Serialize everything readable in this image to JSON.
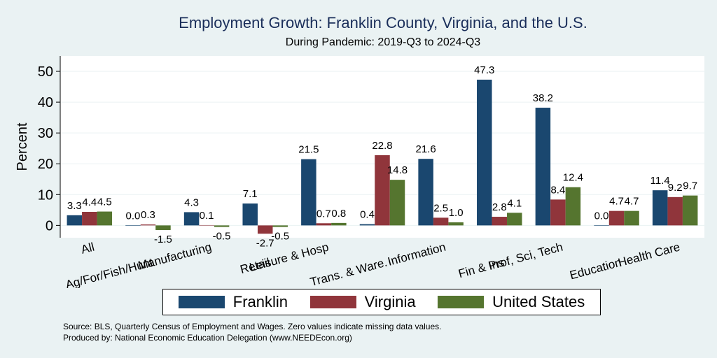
{
  "chart_data": {
    "type": "bar",
    "title": "Employment Growth: Franklin County, Virginia, and the U.S.",
    "subtitle": "During Pandemic: 2019-Q3 to 2024-Q3",
    "ylabel": "Percent",
    "ylim": [
      -4,
      55
    ],
    "yticks": [
      0,
      10,
      20,
      30,
      40,
      50
    ],
    "grid": true,
    "categories": [
      "All",
      "Ag/For/Fish/Hunt",
      "Manufacturing",
      "Retail",
      "Leisure & Hosp",
      "Trans. & Ware.",
      "Information",
      "Fin & Ins",
      "Prof, Sci, Tech",
      "Education",
      "Health Care"
    ],
    "series": [
      {
        "name": "Franklin",
        "color": "#1a476f",
        "values": [
          3.3,
          0.0,
          4.3,
          7.1,
          21.5,
          0.4,
          21.6,
          47.3,
          38.2,
          0.0,
          11.4
        ]
      },
      {
        "name": "Virginia",
        "color": "#90353b",
        "values": [
          4.4,
          0.3,
          0.1,
          -2.7,
          0.7,
          22.8,
          2.5,
          2.8,
          8.4,
          4.7,
          9.2
        ]
      },
      {
        "name": "United States",
        "color": "#55752f",
        "values": [
          4.5,
          -1.5,
          -0.5,
          -0.5,
          0.8,
          14.8,
          1.0,
          4.1,
          12.4,
          4.7,
          9.7
        ]
      }
    ],
    "legend_position": "bottom"
  },
  "notes": {
    "source": "Source: BLS, Quarterly Census of Employment and Wages. Zero values indicate missing data values.",
    "produced": "Produced by: National Economic Education Delegation (www.NEEDEcon.org)"
  }
}
